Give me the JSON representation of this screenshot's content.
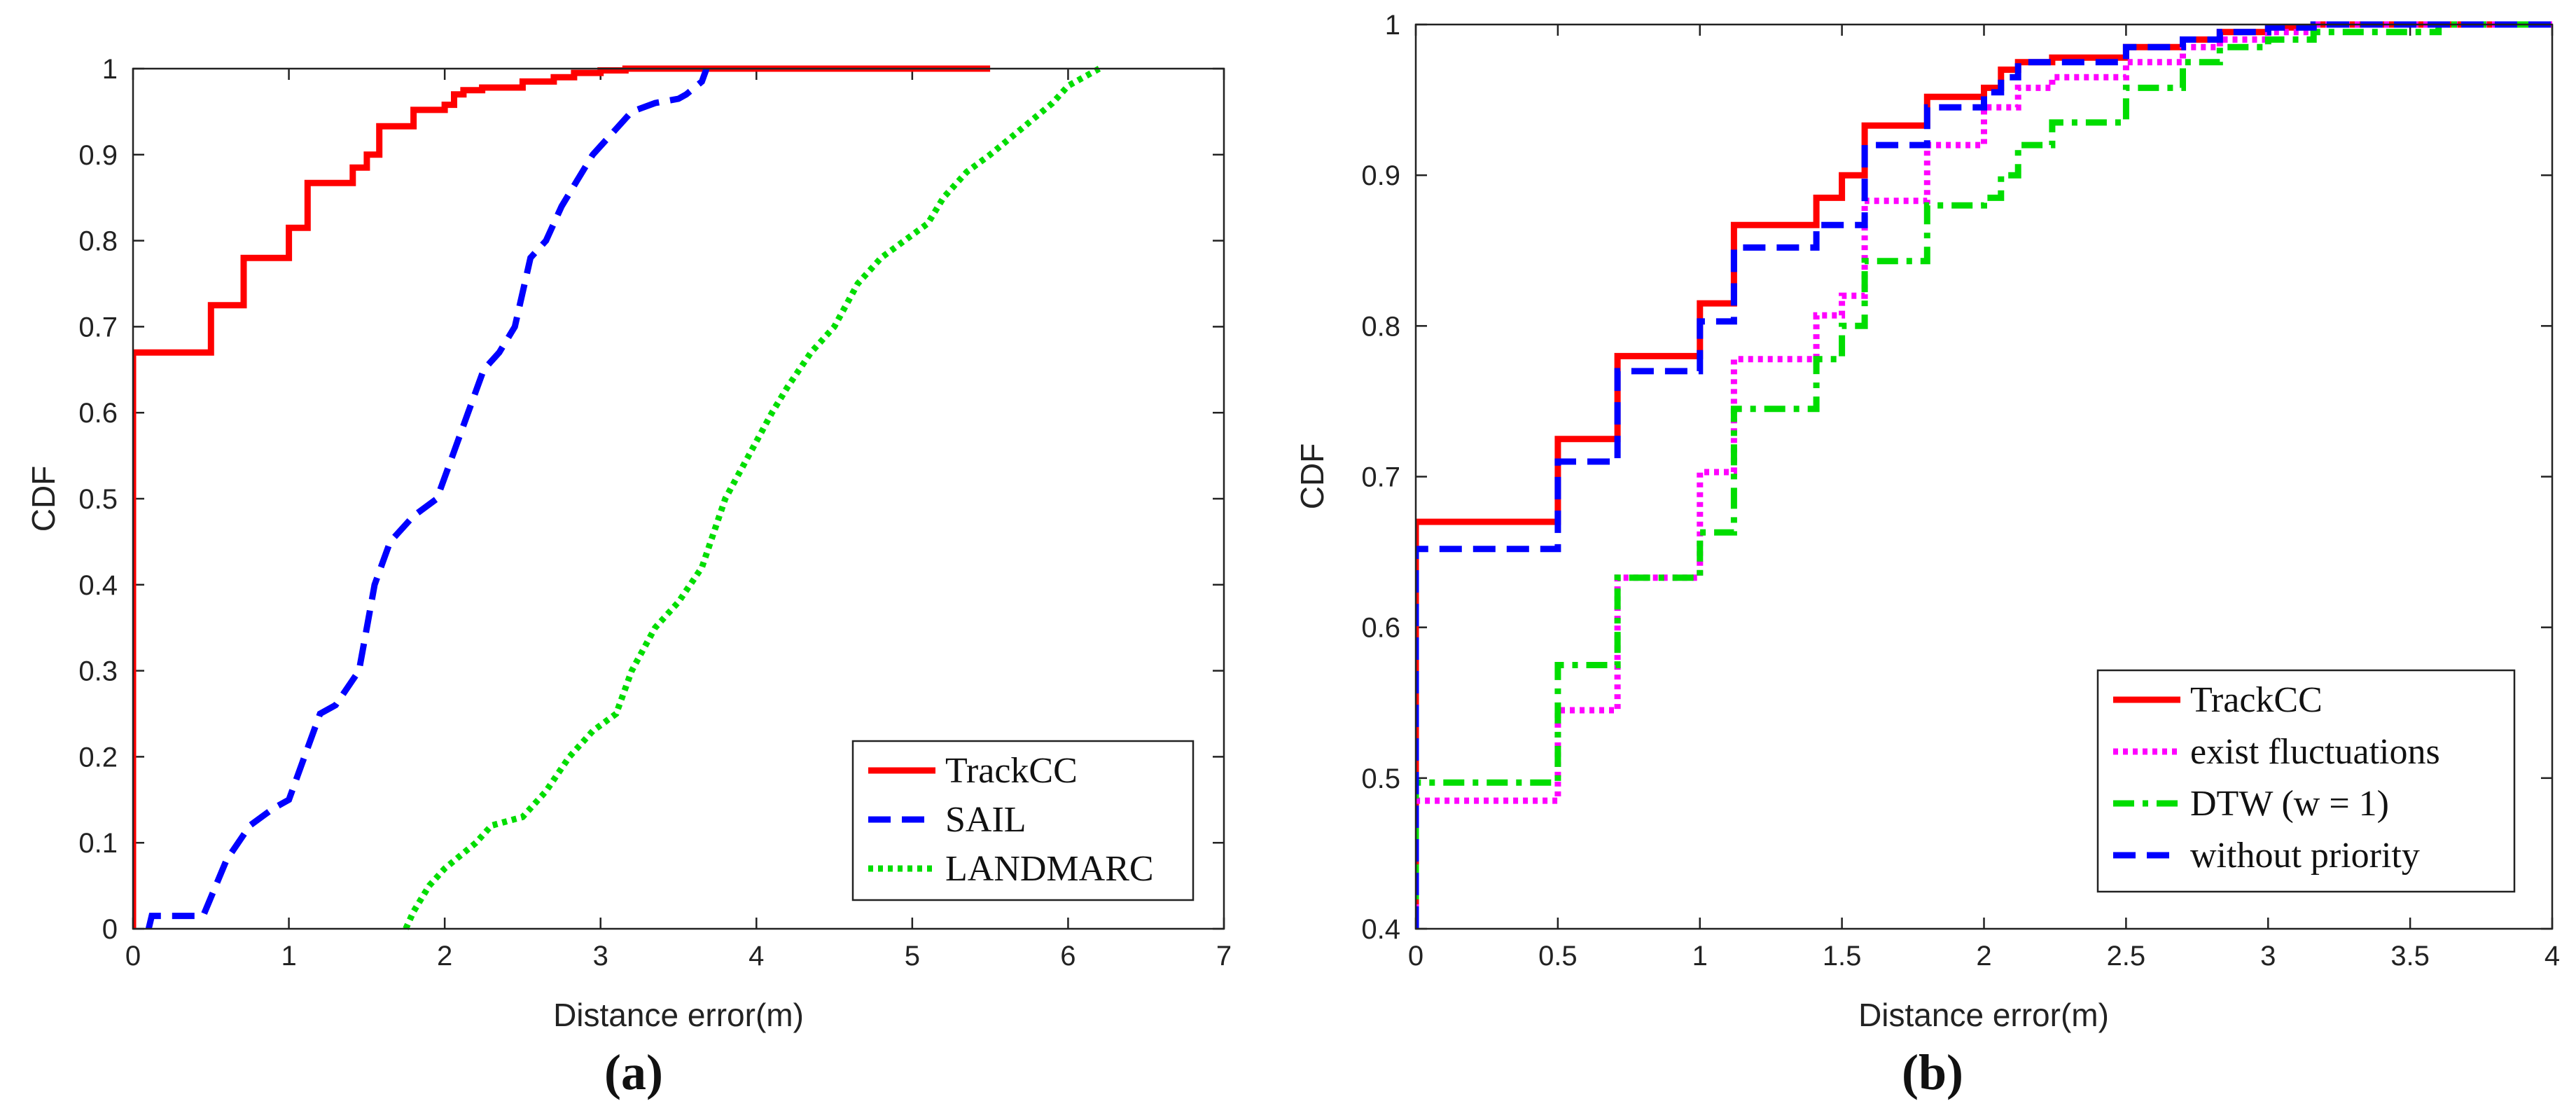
{
  "chart_data": [
    {
      "type": "line",
      "subplot_label": "(a)",
      "xlabel": "Distance error(m)",
      "ylabel": "CDF",
      "xlim": [
        0,
        7
      ],
      "ylim": [
        0,
        1
      ],
      "xticks": [
        0,
        1,
        2,
        3,
        4,
        5,
        6,
        7
      ],
      "yticks": [
        0,
        0.1,
        0.2,
        0.3,
        0.4,
        0.5,
        0.6,
        0.7,
        0.8,
        0.9,
        1
      ],
      "xtick_labels": [
        "0",
        "1",
        "2",
        "3",
        "4",
        "5",
        "6",
        "7"
      ],
      "ytick_labels": [
        "0",
        "0.1",
        "0.2",
        "0.3",
        "0.4",
        "0.5",
        "0.6",
        "0.7",
        "0.8",
        "0.9",
        "1"
      ],
      "legend_position": "bottom-right",
      "series": [
        {
          "name": "TrackCC",
          "color": "#ff0000",
          "style": "solid",
          "x": [
            0,
            0,
            0.5,
            0.5,
            0.71,
            0.71,
            1.0,
            1.0,
            1.12,
            1.12,
            1.41,
            1.41,
            1.5,
            1.5,
            1.58,
            1.58,
            1.8,
            1.8,
            2.0,
            2.0,
            2.06,
            2.06,
            2.12,
            2.12,
            2.24,
            2.24,
            2.5,
            2.5,
            2.7,
            2.7,
            2.83,
            2.83,
            3.0,
            3.0,
            3.16,
            3.16,
            3.6,
            3.6,
            5.5
          ],
          "y": [
            0,
            0.67,
            0.67,
            0.725,
            0.725,
            0.78,
            0.78,
            0.815,
            0.815,
            0.867,
            0.867,
            0.885,
            0.885,
            0.9,
            0.9,
            0.933,
            0.933,
            0.952,
            0.952,
            0.958,
            0.958,
            0.97,
            0.97,
            0.975,
            0.975,
            0.978,
            0.978,
            0.985,
            0.985,
            0.99,
            0.99,
            0.995,
            0.995,
            0.998,
            0.998,
            1.0,
            1.0,
            1.0,
            1.0
          ]
        },
        {
          "name": "SAIL",
          "color": "#0000ff",
          "style": "dashed",
          "x": [
            0.1,
            0.12,
            0.45,
            0.6,
            0.75,
            0.9,
            1.0,
            1.1,
            1.2,
            1.3,
            1.45,
            1.5,
            1.55,
            1.65,
            1.7,
            1.8,
            1.95,
            2.05,
            2.15,
            2.25,
            2.35,
            2.45,
            2.55,
            2.65,
            2.75,
            2.85,
            2.95,
            3.1,
            3.2,
            3.35,
            3.5,
            3.55,
            3.65,
            3.68
          ],
          "y": [
            0,
            0.015,
            0.015,
            0.08,
            0.12,
            0.14,
            0.15,
            0.2,
            0.25,
            0.26,
            0.3,
            0.35,
            0.4,
            0.45,
            0.46,
            0.48,
            0.5,
            0.55,
            0.6,
            0.65,
            0.67,
            0.7,
            0.78,
            0.8,
            0.84,
            0.87,
            0.9,
            0.93,
            0.95,
            0.96,
            0.965,
            0.97,
            0.985,
            1.0
          ]
        },
        {
          "name": "LANDMARC",
          "color": "#00dd00",
          "style": "dotted",
          "x": [
            1.75,
            1.8,
            1.9,
            2.0,
            2.2,
            2.3,
            2.5,
            2.65,
            2.8,
            2.95,
            3.1,
            3.2,
            3.35,
            3.5,
            3.65,
            3.8,
            3.95,
            4.1,
            4.2,
            4.35,
            4.5,
            4.65,
            4.8,
            4.95,
            5.1,
            5.2,
            5.35,
            5.5,
            5.7,
            5.9,
            6.0,
            6.2
          ],
          "y": [
            0,
            0.02,
            0.05,
            0.07,
            0.1,
            0.12,
            0.13,
            0.16,
            0.2,
            0.23,
            0.25,
            0.3,
            0.35,
            0.38,
            0.42,
            0.5,
            0.55,
            0.6,
            0.63,
            0.67,
            0.7,
            0.75,
            0.78,
            0.8,
            0.82,
            0.85,
            0.88,
            0.9,
            0.93,
            0.96,
            0.98,
            1.0
          ]
        }
      ]
    },
    {
      "type": "line",
      "subplot_label": "(b)",
      "xlabel": "Distance error(m)",
      "ylabel": "CDF",
      "xlim": [
        0,
        4
      ],
      "ylim": [
        0.4,
        1
      ],
      "xticks": [
        0,
        0.5,
        1,
        1.5,
        2,
        2.5,
        3,
        3.5,
        4
      ],
      "yticks": [
        0.4,
        0.5,
        0.6,
        0.7,
        0.8,
        0.9,
        1
      ],
      "xtick_labels": [
        "0",
        "0.5",
        "1",
        "1.5",
        "2",
        "2.5",
        "3",
        "3.5",
        "4"
      ],
      "ytick_labels": [
        "0.4",
        "0.5",
        "0.6",
        "0.7",
        "0.8",
        "0.9",
        "1"
      ],
      "legend_position": "bottom-right",
      "series": [
        {
          "name": "TrackCC",
          "color": "#ff0000",
          "style": "solid",
          "x": [
            0,
            0,
            0.5,
            0.5,
            0.71,
            0.71,
            1.0,
            1.0,
            1.12,
            1.12,
            1.41,
            1.41,
            1.5,
            1.5,
            1.58,
            1.58,
            1.8,
            1.8,
            2.0,
            2.0,
            2.06,
            2.06,
            2.12,
            2.12,
            2.24,
            2.24,
            2.5,
            2.5,
            2.7,
            2.7,
            2.83,
            2.83,
            3.0,
            3.0,
            3.16,
            3.16,
            4.0
          ],
          "y": [
            0.4,
            0.67,
            0.67,
            0.725,
            0.725,
            0.78,
            0.78,
            0.815,
            0.815,
            0.867,
            0.867,
            0.885,
            0.885,
            0.9,
            0.9,
            0.933,
            0.933,
            0.952,
            0.952,
            0.958,
            0.958,
            0.97,
            0.97,
            0.975,
            0.975,
            0.978,
            0.978,
            0.985,
            0.985,
            0.99,
            0.99,
            0.995,
            0.995,
            0.998,
            0.998,
            1.0,
            1.0
          ]
        },
        {
          "name": "exist fluctuations",
          "color": "#ff00ff",
          "style": "dotted",
          "x": [
            0,
            0,
            0.5,
            0.5,
            0.71,
            0.71,
            1.0,
            1.0,
            1.12,
            1.12,
            1.41,
            1.41,
            1.5,
            1.5,
            1.58,
            1.58,
            1.8,
            1.8,
            2.0,
            2.0,
            2.12,
            2.12,
            2.24,
            2.24,
            2.5,
            2.5,
            2.7,
            2.7,
            2.83,
            2.83,
            3.0,
            3.0,
            3.16,
            3.16,
            4.0
          ],
          "y": [
            0.4,
            0.485,
            0.485,
            0.545,
            0.545,
            0.633,
            0.633,
            0.703,
            0.703,
            0.778,
            0.778,
            0.807,
            0.807,
            0.82,
            0.82,
            0.883,
            0.883,
            0.92,
            0.92,
            0.945,
            0.945,
            0.958,
            0.958,
            0.965,
            0.965,
            0.975,
            0.975,
            0.985,
            0.985,
            0.99,
            0.99,
            0.995,
            0.995,
            1.0,
            1.0
          ]
        },
        {
          "name": "DTW (w = 1)",
          "color": "#00dd00",
          "style": "dashdot",
          "x": [
            0,
            0,
            0.5,
            0.5,
            0.71,
            0.71,
            1.0,
            1.0,
            1.12,
            1.12,
            1.41,
            1.41,
            1.5,
            1.5,
            1.58,
            1.58,
            1.8,
            1.8,
            2.0,
            2.0,
            2.06,
            2.06,
            2.12,
            2.12,
            2.24,
            2.24,
            2.5,
            2.5,
            2.7,
            2.7,
            2.83,
            2.83,
            3.0,
            3.0,
            3.16,
            3.16,
            3.6,
            3.6,
            4.0
          ],
          "y": [
            0.4,
            0.497,
            0.497,
            0.575,
            0.575,
            0.633,
            0.633,
            0.663,
            0.663,
            0.745,
            0.745,
            0.778,
            0.778,
            0.8,
            0.8,
            0.843,
            0.843,
            0.88,
            0.88,
            0.885,
            0.885,
            0.9,
            0.9,
            0.92,
            0.92,
            0.935,
            0.935,
            0.958,
            0.958,
            0.975,
            0.975,
            0.985,
            0.985,
            0.99,
            0.99,
            0.995,
            0.995,
            1.0,
            1.0
          ]
        },
        {
          "name": "without priority",
          "color": "#0000ff",
          "style": "dashed",
          "x": [
            0,
            0,
            0.5,
            0.5,
            0.71,
            0.71,
            1.0,
            1.0,
            1.12,
            1.12,
            1.41,
            1.41,
            1.58,
            1.58,
            1.8,
            1.8,
            2.0,
            2.0,
            2.06,
            2.06,
            2.12,
            2.12,
            2.5,
            2.5,
            2.7,
            2.7,
            2.83,
            2.83,
            3.0,
            3.0,
            3.16,
            3.16,
            4.0
          ],
          "y": [
            0.4,
            0.652,
            0.652,
            0.71,
            0.71,
            0.77,
            0.77,
            0.803,
            0.803,
            0.852,
            0.852,
            0.867,
            0.867,
            0.92,
            0.92,
            0.945,
            0.945,
            0.955,
            0.955,
            0.965,
            0.965,
            0.975,
            0.975,
            0.985,
            0.985,
            0.99,
            0.99,
            0.995,
            0.995,
            0.998,
            0.998,
            1.0,
            1.0
          ]
        }
      ]
    }
  ]
}
